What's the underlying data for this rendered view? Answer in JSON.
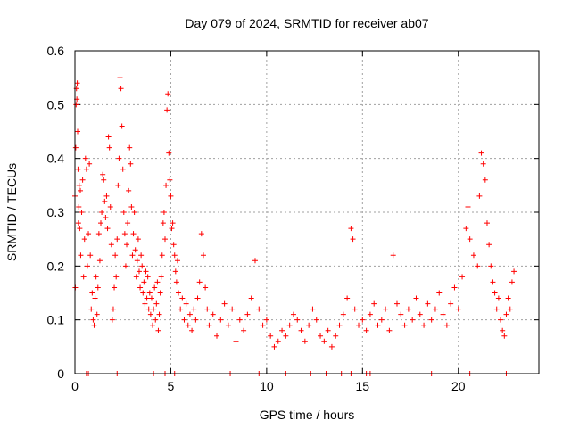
{
  "chart_data": {
    "type": "scatter",
    "title": "Day 079 of 2024, SRMTID for receiver ab07",
    "xlabel": "GPS time / hours",
    "ylabel": "SRMTID / TECUs",
    "xlim": [
      0,
      24.2
    ],
    "ylim": [
      0,
      0.6
    ],
    "x_ticks": [
      0,
      5,
      10,
      15,
      20
    ],
    "x_tick_labels": [
      "0",
      "5",
      "10",
      "15",
      "20"
    ],
    "y_ticks": [
      0,
      0.1,
      0.2,
      0.3,
      0.4,
      0.5,
      0.6
    ],
    "y_tick_labels": [
      "0",
      "0.1",
      "0.2",
      "0.3",
      "0.4",
      "0.5",
      "0.6"
    ],
    "grid": true,
    "marker": "plus",
    "color": "#ff0000",
    "series": [
      {
        "name": "SRMTID",
        "points": [
          [
            0.0,
            0.33
          ],
          [
            0.02,
            0.16
          ],
          [
            0.04,
            0.42
          ],
          [
            0.06,
            0.5
          ],
          [
            0.08,
            0.53
          ],
          [
            0.1,
            0.51
          ],
          [
            0.12,
            0.54
          ],
          [
            0.14,
            0.45
          ],
          [
            0.16,
            0.38
          ],
          [
            0.18,
            0.28
          ],
          [
            0.2,
            0.31
          ],
          [
            0.22,
            0.35
          ],
          [
            0.25,
            0.27
          ],
          [
            0.28,
            0.34
          ],
          [
            0.3,
            0.22
          ],
          [
            0.35,
            0.3
          ],
          [
            0.4,
            0.36
          ],
          [
            0.45,
            0.18
          ],
          [
            0.5,
            0.25
          ],
          [
            0.55,
            0.4
          ],
          [
            0.6,
            0.38
          ],
          [
            0.65,
            0.2
          ],
          [
            0.7,
            0.26
          ],
          [
            0.75,
            0.39
          ],
          [
            0.8,
            0.22
          ],
          [
            0.85,
            0.12
          ],
          [
            0.9,
            0.15
          ],
          [
            0.95,
            0.1
          ],
          [
            1.0,
            0.09
          ],
          [
            1.05,
            0.14
          ],
          [
            1.1,
            0.18
          ],
          [
            1.15,
            0.11
          ],
          [
            1.2,
            0.16
          ],
          [
            1.25,
            0.26
          ],
          [
            1.3,
            0.21
          ],
          [
            1.35,
            0.28
          ],
          [
            1.4,
            0.3
          ],
          [
            1.45,
            0.37
          ],
          [
            1.5,
            0.36
          ],
          [
            1.55,
            0.32
          ],
          [
            1.6,
            0.29
          ],
          [
            1.65,
            0.33
          ],
          [
            1.7,
            0.27
          ],
          [
            1.75,
            0.44
          ],
          [
            1.8,
            0.42
          ],
          [
            1.85,
            0.31
          ],
          [
            1.9,
            0.24
          ],
          [
            1.95,
            0.1
          ],
          [
            2.0,
            0.12
          ],
          [
            2.05,
            0.16
          ],
          [
            2.1,
            0.22
          ],
          [
            2.15,
            0.18
          ],
          [
            2.2,
            0.25
          ],
          [
            2.25,
            0.35
          ],
          [
            2.3,
            0.4
          ],
          [
            2.35,
            0.55
          ],
          [
            2.4,
            0.53
          ],
          [
            2.45,
            0.46
          ],
          [
            2.5,
            0.38
          ],
          [
            2.55,
            0.3
          ],
          [
            2.6,
            0.26
          ],
          [
            2.65,
            0.2
          ],
          [
            2.7,
            0.24
          ],
          [
            2.75,
            0.28
          ],
          [
            2.8,
            0.34
          ],
          [
            2.85,
            0.42
          ],
          [
            2.9,
            0.39
          ],
          [
            2.95,
            0.31
          ],
          [
            3.0,
            0.22
          ],
          [
            3.05,
            0.26
          ],
          [
            3.1,
            0.3
          ],
          [
            3.15,
            0.23
          ],
          [
            3.2,
            0.18
          ],
          [
            3.25,
            0.21
          ],
          [
            3.3,
            0.25
          ],
          [
            3.35,
            0.19
          ],
          [
            3.4,
            0.16
          ],
          [
            3.45,
            0.22
          ],
          [
            3.5,
            0.2
          ],
          [
            3.55,
            0.15
          ],
          [
            3.6,
            0.17
          ],
          [
            3.65,
            0.13
          ],
          [
            3.7,
            0.19
          ],
          [
            3.75,
            0.14
          ],
          [
            3.8,
            0.18
          ],
          [
            3.85,
            0.12
          ],
          [
            3.9,
            0.15
          ],
          [
            3.95,
            0.11
          ],
          [
            4.0,
            0.14
          ],
          [
            4.05,
            0.09
          ],
          [
            4.1,
            0.12
          ],
          [
            4.15,
            0.16
          ],
          [
            4.2,
            0.1
          ],
          [
            4.25,
            0.13
          ],
          [
            4.3,
            0.17
          ],
          [
            4.35,
            0.08
          ],
          [
            4.4,
            0.11
          ],
          [
            4.45,
            0.15
          ],
          [
            4.5,
            0.18
          ],
          [
            4.55,
            0.22
          ],
          [
            4.6,
            0.28
          ],
          [
            4.65,
            0.3
          ],
          [
            4.7,
            0.25
          ],
          [
            4.75,
            0.35
          ],
          [
            4.8,
            0.49
          ],
          [
            4.85,
            0.52
          ],
          [
            4.9,
            0.41
          ],
          [
            4.95,
            0.36
          ],
          [
            5.0,
            0.33
          ],
          [
            5.05,
            0.27
          ],
          [
            5.1,
            0.28
          ],
          [
            5.15,
            0.24
          ],
          [
            5.2,
            0.22
          ],
          [
            5.25,
            0.19
          ],
          [
            5.3,
            0.17
          ],
          [
            5.35,
            0.21
          ],
          [
            5.4,
            0.15
          ],
          [
            5.5,
            0.12
          ],
          [
            5.6,
            0.14
          ],
          [
            5.7,
            0.1
          ],
          [
            5.8,
            0.13
          ],
          [
            5.9,
            0.09
          ],
          [
            6.0,
            0.11
          ],
          [
            6.1,
            0.08
          ],
          [
            6.2,
            0.12
          ],
          [
            6.3,
            0.1
          ],
          [
            6.4,
            0.14
          ],
          [
            6.5,
            0.17
          ],
          [
            6.6,
            0.26
          ],
          [
            6.7,
            0.22
          ],
          [
            6.8,
            0.16
          ],
          [
            6.9,
            0.12
          ],
          [
            7.0,
            0.09
          ],
          [
            7.2,
            0.11
          ],
          [
            7.4,
            0.07
          ],
          [
            7.6,
            0.1
          ],
          [
            7.8,
            0.13
          ],
          [
            8.0,
            0.09
          ],
          [
            8.2,
            0.12
          ],
          [
            8.4,
            0.06
          ],
          [
            8.6,
            0.1
          ],
          [
            8.8,
            0.08
          ],
          [
            9.0,
            0.11
          ],
          [
            9.2,
            0.14
          ],
          [
            9.4,
            0.21
          ],
          [
            9.6,
            0.12
          ],
          [
            9.8,
            0.09
          ],
          [
            10.0,
            0.1
          ],
          [
            10.2,
            0.07
          ],
          [
            10.4,
            0.05
          ],
          [
            10.6,
            0.06
          ],
          [
            10.8,
            0.08
          ],
          [
            11.0,
            0.07
          ],
          [
            11.2,
            0.09
          ],
          [
            11.4,
            0.11
          ],
          [
            11.6,
            0.1
          ],
          [
            11.8,
            0.08
          ],
          [
            12.0,
            0.06
          ],
          [
            12.2,
            0.09
          ],
          [
            12.4,
            0.12
          ],
          [
            12.6,
            0.1
          ],
          [
            12.8,
            0.07
          ],
          [
            13.0,
            0.06
          ],
          [
            13.2,
            0.08
          ],
          [
            13.4,
            0.05
          ],
          [
            13.6,
            0.07
          ],
          [
            13.8,
            0.09
          ],
          [
            14.0,
            0.11
          ],
          [
            14.2,
            0.14
          ],
          [
            14.4,
            0.27
          ],
          [
            14.5,
            0.25
          ],
          [
            14.6,
            0.12
          ],
          [
            14.8,
            0.09
          ],
          [
            15.0,
            0.1
          ],
          [
            15.2,
            0.08
          ],
          [
            15.4,
            0.11
          ],
          [
            15.6,
            0.13
          ],
          [
            15.8,
            0.09
          ],
          [
            16.0,
            0.1
          ],
          [
            16.2,
            0.12
          ],
          [
            16.4,
            0.08
          ],
          [
            16.6,
            0.22
          ],
          [
            16.8,
            0.13
          ],
          [
            17.0,
            0.11
          ],
          [
            17.2,
            0.09
          ],
          [
            17.4,
            0.12
          ],
          [
            17.6,
            0.1
          ],
          [
            17.8,
            0.14
          ],
          [
            18.0,
            0.11
          ],
          [
            18.2,
            0.09
          ],
          [
            18.4,
            0.13
          ],
          [
            18.6,
            0.1
          ],
          [
            18.8,
            0.12
          ],
          [
            19.0,
            0.15
          ],
          [
            19.2,
            0.11
          ],
          [
            19.4,
            0.09
          ],
          [
            19.6,
            0.13
          ],
          [
            19.8,
            0.16
          ],
          [
            20.0,
            0.12
          ],
          [
            20.2,
            0.18
          ],
          [
            20.4,
            0.27
          ],
          [
            20.5,
            0.31
          ],
          [
            20.6,
            0.25
          ],
          [
            20.8,
            0.22
          ],
          [
            21.0,
            0.2
          ],
          [
            21.1,
            0.33
          ],
          [
            21.2,
            0.41
          ],
          [
            21.3,
            0.39
          ],
          [
            21.4,
            0.36
          ],
          [
            21.5,
            0.28
          ],
          [
            21.6,
            0.24
          ],
          [
            21.7,
            0.2
          ],
          [
            21.8,
            0.17
          ],
          [
            21.9,
            0.15
          ],
          [
            22.0,
            0.12
          ],
          [
            22.1,
            0.14
          ],
          [
            22.2,
            0.1
          ],
          [
            22.3,
            0.08
          ],
          [
            22.4,
            0.07
          ],
          [
            22.5,
            0.11
          ],
          [
            22.6,
            0.14
          ],
          [
            22.7,
            0.12
          ],
          [
            22.8,
            0.17
          ],
          [
            22.9,
            0.19
          ]
        ]
      }
    ],
    "zero_points_x": [
      0.6,
      0.7,
      2.2,
      4.1,
      4.7,
      5.2,
      8.1,
      9.6,
      11.0,
      12.3,
      13.1,
      13.9,
      14.4,
      15.2,
      15.4,
      18.6,
      20.6,
      22.5
    ]
  }
}
